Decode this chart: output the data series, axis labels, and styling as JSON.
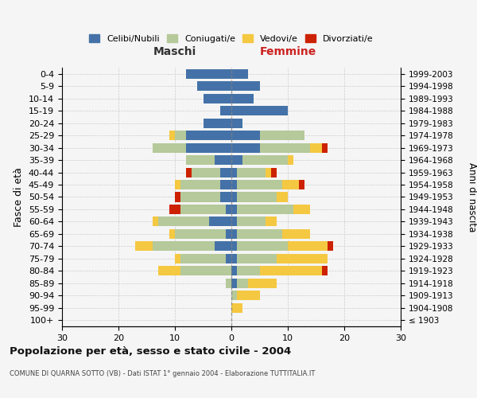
{
  "age_groups": [
    "100+",
    "95-99",
    "90-94",
    "85-89",
    "80-84",
    "75-79",
    "70-74",
    "65-69",
    "60-64",
    "55-59",
    "50-54",
    "45-49",
    "40-44",
    "35-39",
    "30-34",
    "25-29",
    "20-24",
    "15-19",
    "10-14",
    "5-9",
    "0-4"
  ],
  "birth_years": [
    "≤ 1903",
    "1904-1908",
    "1909-1913",
    "1914-1918",
    "1919-1923",
    "1924-1928",
    "1929-1933",
    "1934-1938",
    "1939-1943",
    "1944-1948",
    "1949-1953",
    "1954-1958",
    "1959-1963",
    "1964-1968",
    "1969-1973",
    "1974-1978",
    "1979-1983",
    "1984-1988",
    "1989-1993",
    "1994-1998",
    "1999-2003"
  ],
  "maschi": {
    "celibi": [
      0,
      0,
      0,
      0,
      0,
      1,
      3,
      1,
      4,
      1,
      2,
      2,
      2,
      3,
      8,
      8,
      5,
      2,
      5,
      6,
      8
    ],
    "coniugati": [
      0,
      0,
      0,
      1,
      9,
      8,
      11,
      9,
      9,
      8,
      7,
      7,
      5,
      5,
      6,
      2,
      0,
      0,
      0,
      0,
      0
    ],
    "vedovi": [
      0,
      0,
      0,
      0,
      4,
      1,
      3,
      1,
      1,
      0,
      0,
      1,
      0,
      0,
      0,
      1,
      0,
      0,
      0,
      0,
      0
    ],
    "divorziati": [
      0,
      0,
      0,
      0,
      0,
      0,
      0,
      0,
      0,
      2,
      1,
      0,
      1,
      0,
      0,
      0,
      0,
      0,
      0,
      0,
      0
    ]
  },
  "femmine": {
    "nubili": [
      0,
      0,
      0,
      1,
      1,
      1,
      1,
      1,
      1,
      1,
      1,
      1,
      1,
      2,
      5,
      5,
      2,
      10,
      4,
      5,
      3
    ],
    "coniugate": [
      0,
      0,
      1,
      2,
      4,
      7,
      9,
      8,
      5,
      10,
      7,
      8,
      5,
      8,
      9,
      8,
      0,
      0,
      0,
      0,
      0
    ],
    "vedove": [
      0,
      2,
      4,
      5,
      11,
      9,
      7,
      5,
      2,
      3,
      2,
      3,
      1,
      1,
      2,
      0,
      0,
      0,
      0,
      0,
      0
    ],
    "divorziate": [
      0,
      0,
      0,
      0,
      1,
      0,
      1,
      0,
      0,
      0,
      0,
      1,
      1,
      0,
      1,
      0,
      0,
      0,
      0,
      0,
      0
    ]
  },
  "colors": {
    "celibi_nubili": "#4472a8",
    "coniugati": "#b5c99a",
    "vedovi": "#f5c842",
    "divorziati": "#cc2200"
  },
  "xlim": [
    -30,
    30
  ],
  "xticks": [
    -30,
    -20,
    -10,
    0,
    10,
    20,
    30
  ],
  "xticklabels": [
    "30",
    "20",
    "10",
    "0",
    "10",
    "20",
    "30"
  ],
  "title": "Popolazione per età, sesso e stato civile - 2004",
  "subtitle": "COMUNE DI QUARNA SOTTO (VB) - Dati ISTAT 1° gennaio 2004 - Elaborazione TUTTITALIA.IT",
  "ylabel": "Fasce di età",
  "ylabel2": "Anni di nascita",
  "label_maschi": "Maschi",
  "label_femmine": "Femmine",
  "legend_labels": [
    "Celibi/Nubili",
    "Coniugati/e",
    "Vedovi/e",
    "Divorziati/e"
  ],
  "bg_color": "#f5f5f5",
  "grid_color": "#cccccc"
}
